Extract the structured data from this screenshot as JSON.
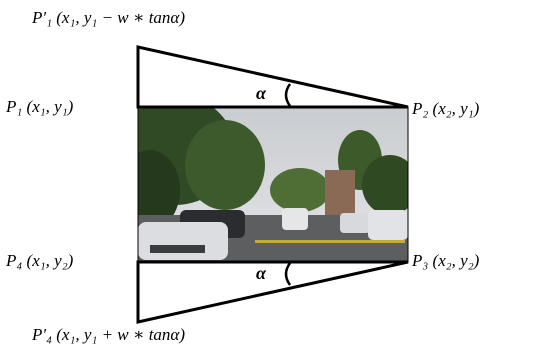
{
  "points": {
    "p1_prime": "P′₁ (x₁,  y₁ − w ∗ tanα)",
    "p1": "P₁ (x₁,  y₁)",
    "p2": "P₂ (x₂,  y₁)",
    "p4": "P₄ (x₁,  y₂)",
    "p3": "P₃ (x₂,  y₂)",
    "p4_prime": "P′₄ (x₁,  y₁ + w ∗ tanα)"
  },
  "angle_labels": [
    "α",
    "α"
  ]
}
